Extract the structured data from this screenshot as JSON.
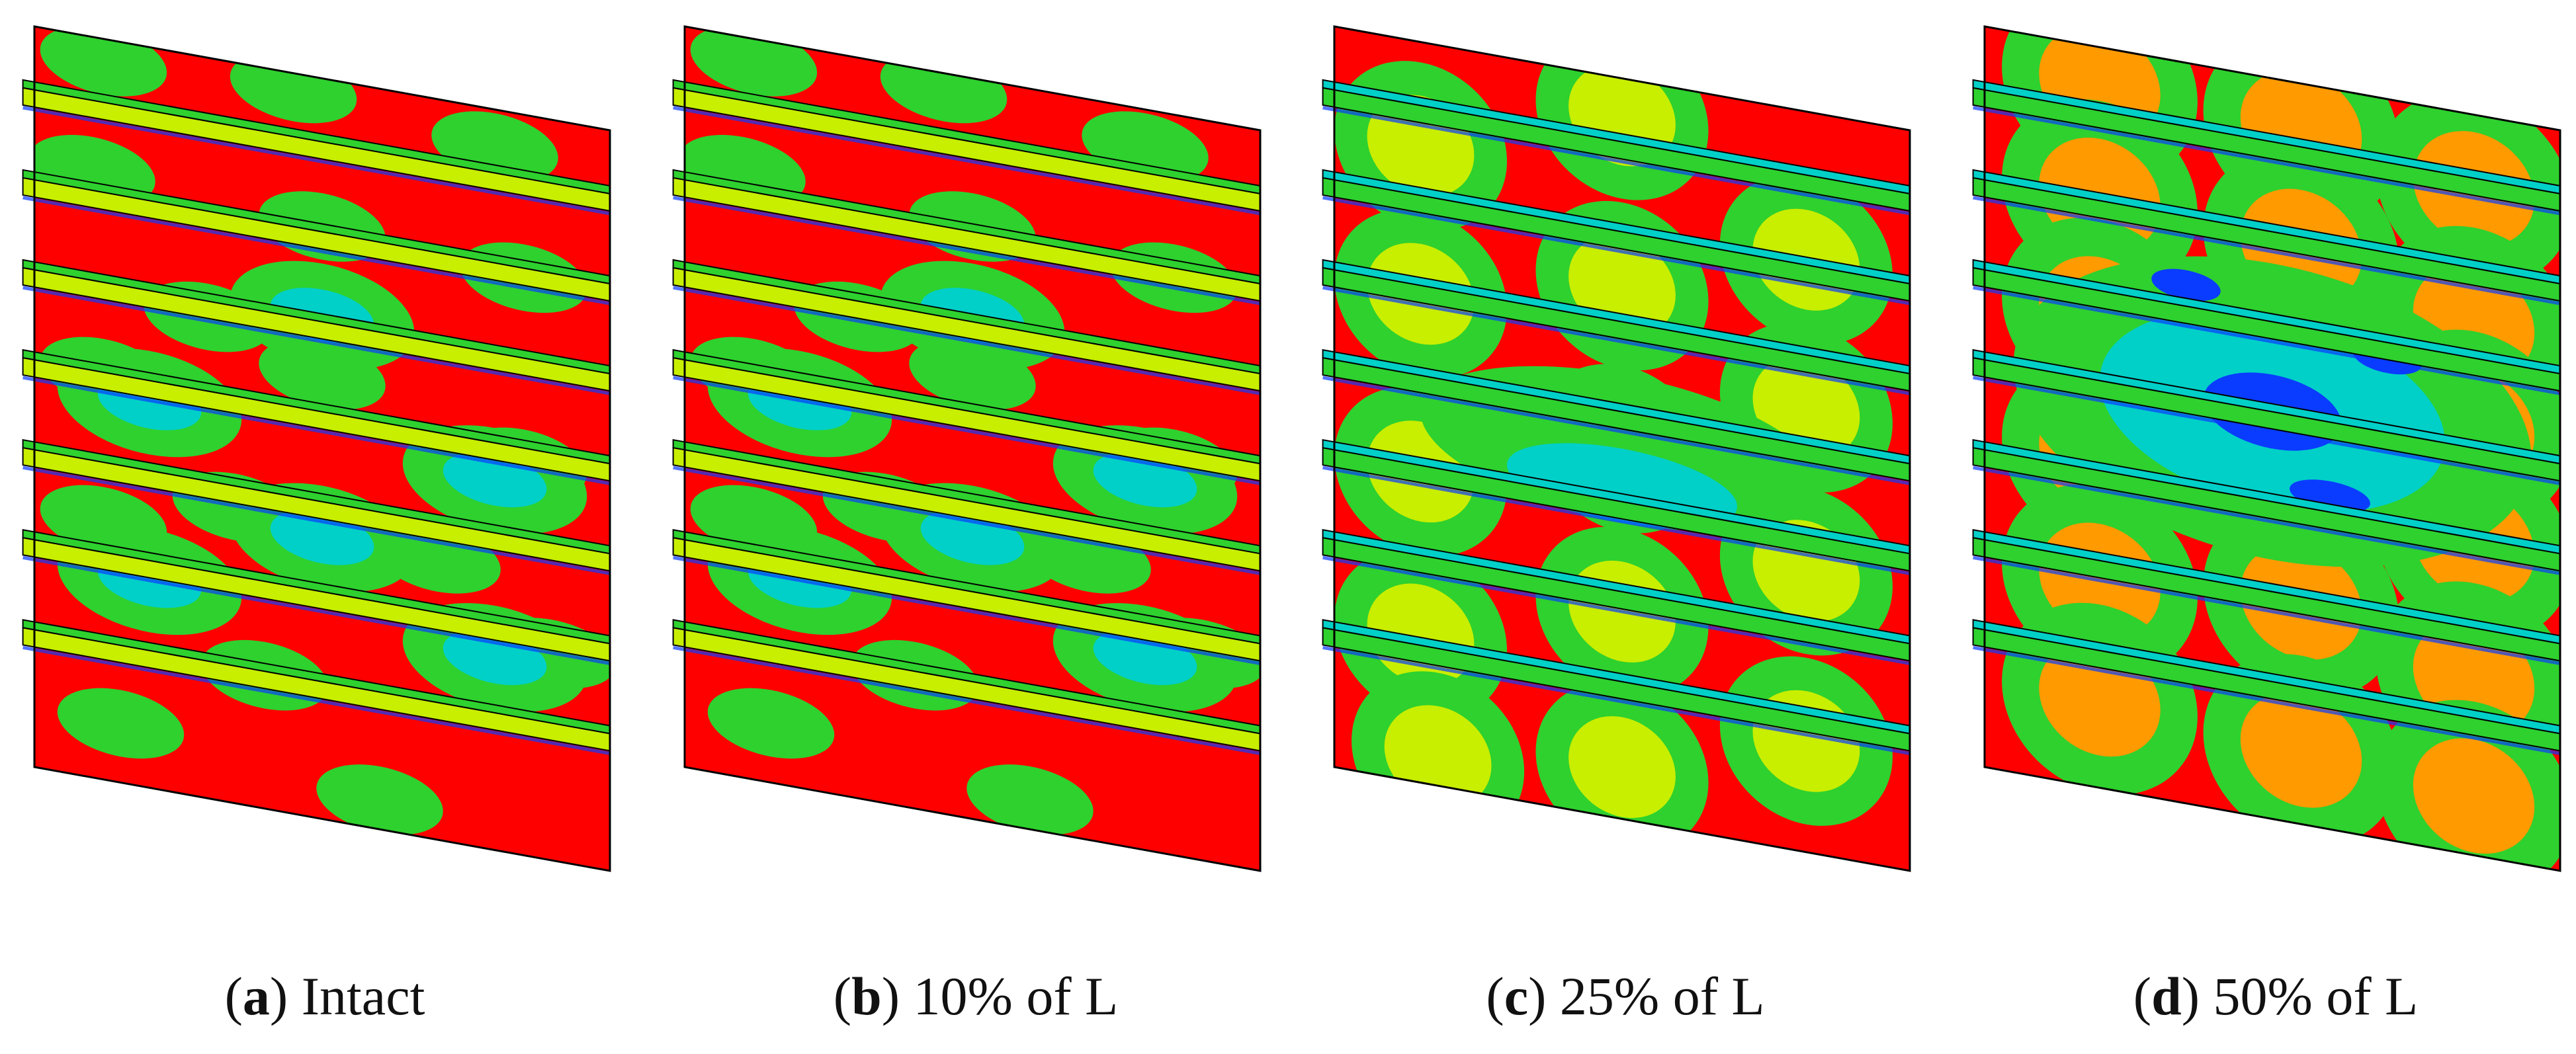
{
  "panels": [
    {
      "letter": "a",
      "text": "Intact",
      "damage": 0
    },
    {
      "letter": "b",
      "text": "10% of L",
      "damage": 0.1
    },
    {
      "letter": "c",
      "text": "25% of L",
      "damage": 0.25
    },
    {
      "letter": "d",
      "text": "50% of L",
      "damage": 0.5
    }
  ],
  "stiffener_count": 7,
  "colors": {
    "red": "#ff0000",
    "orange": "#ff9a00",
    "yellow": "#c8ee00",
    "green": "#2ed12e",
    "cyan": "#00d0c8",
    "blue": "#0a3cff",
    "outline": "#000000"
  }
}
